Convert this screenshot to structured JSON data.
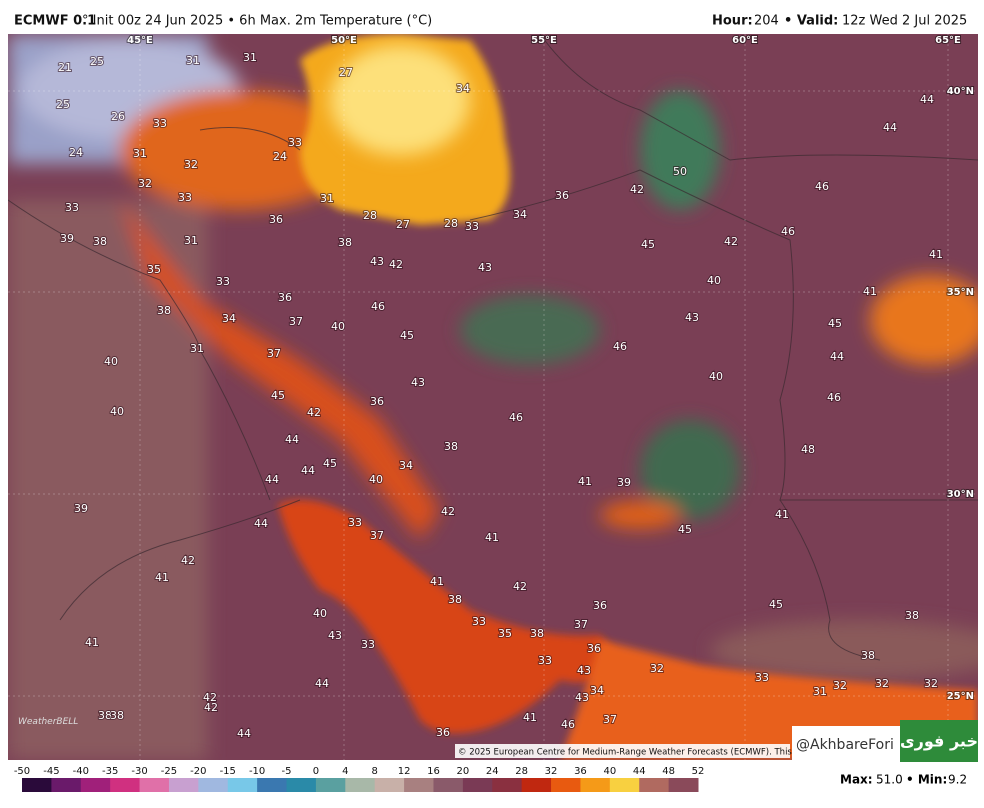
{
  "header": {
    "model": "ECMWF 0.1",
    "title": "° Init 00z 24 Jun 2025 • 6h Max. 2m Temperature (°C)",
    "hour_label": "Hour:",
    "hour": "204",
    "valid_label": "• Valid:",
    "valid": "12z Wed 2 Jul 2025"
  },
  "map": {
    "lon_labels": [
      "45°E",
      "50°E",
      "55°E",
      "60°E",
      "65°E"
    ],
    "lat_labels": [
      "40°N",
      "35°N",
      "30°N",
      "25°N"
    ],
    "temperature_labels": [
      21,
      25,
      31,
      31,
      27,
      34,
      25,
      26,
      33,
      33,
      24,
      31,
      32,
      24,
      32,
      33,
      31,
      28,
      27,
      28,
      33,
      34,
      36,
      42,
      50,
      46,
      44,
      44,
      33,
      39,
      38,
      31,
      36,
      38,
      43,
      42,
      43,
      45,
      42,
      46,
      41,
      41,
      35,
      33,
      36,
      40,
      38,
      34,
      37,
      40,
      46,
      45,
      43,
      45,
      31,
      37,
      46,
      44,
      40,
      43,
      40,
      45,
      36,
      46,
      42,
      40,
      46,
      44,
      38,
      48,
      45,
      44,
      34,
      44,
      40,
      41,
      39,
      39,
      42,
      33,
      41,
      44,
      37,
      41,
      45,
      42,
      41,
      42,
      41,
      38,
      45,
      40,
      36,
      38,
      33,
      35,
      38,
      37,
      43,
      41,
      33,
      36,
      33,
      38,
      32,
      43,
      44,
      33,
      34,
      43,
      32,
      32,
      32,
      31,
      42,
      42,
      38,
      38,
      41,
      46,
      37,
      44,
      36
    ],
    "copyright": "© 2025 European Centre for Medium-Range Weather Forecasts (ECMWF). This service",
    "provider_logo": "WeatherBELL"
  },
  "watermark": {
    "handle": "@AkhbareFori",
    "logo": "خبر فوری"
  },
  "colorbar": {
    "ticks": [
      -50,
      -45,
      -40,
      -35,
      -30,
      -25,
      -20,
      -15,
      -10,
      -5,
      0,
      4,
      8,
      12,
      16,
      20,
      24,
      28,
      32,
      36,
      40,
      44,
      48,
      52
    ]
  },
  "footer": {
    "max_label": "Max:",
    "max": "51.0",
    "min_label": "• Min:",
    "min": 9.2
  }
}
